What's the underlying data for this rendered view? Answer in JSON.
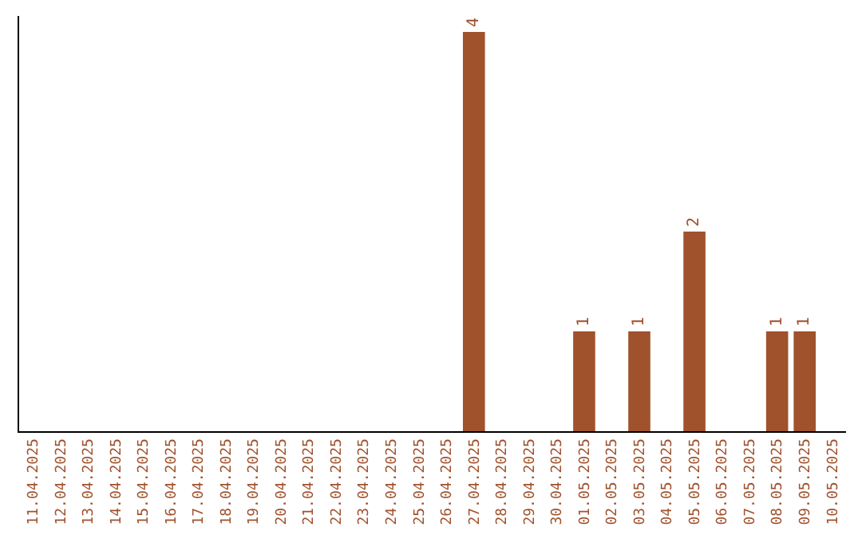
{
  "chart_data": {
    "type": "bar",
    "categories": [
      "11.04.2025",
      "12.04.2025",
      "13.04.2025",
      "14.04.2025",
      "15.04.2025",
      "16.04.2025",
      "17.04.2025",
      "18.04.2025",
      "19.04.2025",
      "20.04.2025",
      "21.04.2025",
      "22.04.2025",
      "23.04.2025",
      "24.04.2025",
      "25.04.2025",
      "26.04.2025",
      "27.04.2025",
      "28.04.2025",
      "29.04.2025",
      "30.04.2025",
      "01.05.2025",
      "02.05.2025",
      "03.05.2025",
      "04.05.2025",
      "05.05.2025",
      "06.05.2025",
      "07.05.2025",
      "08.05.2025",
      "09.05.2025",
      "10.05.2025"
    ],
    "values": [
      null,
      null,
      null,
      null,
      null,
      null,
      null,
      null,
      null,
      null,
      null,
      null,
      null,
      null,
      null,
      null,
      4,
      null,
      null,
      null,
      1,
      null,
      1,
      null,
      2,
      null,
      null,
      1,
      1,
      null
    ],
    "value_labels": [
      null,
      null,
      null,
      null,
      null,
      null,
      null,
      null,
      null,
      null,
      null,
      null,
      null,
      null,
      null,
      null,
      "4",
      null,
      null,
      null,
      "1",
      null,
      "1",
      null,
      "2",
      null,
      null,
      "1",
      "1",
      null
    ],
    "color": "#a0522d",
    "ylim": [
      0,
      4.16
    ],
    "tick_labels": "x",
    "legend": false
  }
}
